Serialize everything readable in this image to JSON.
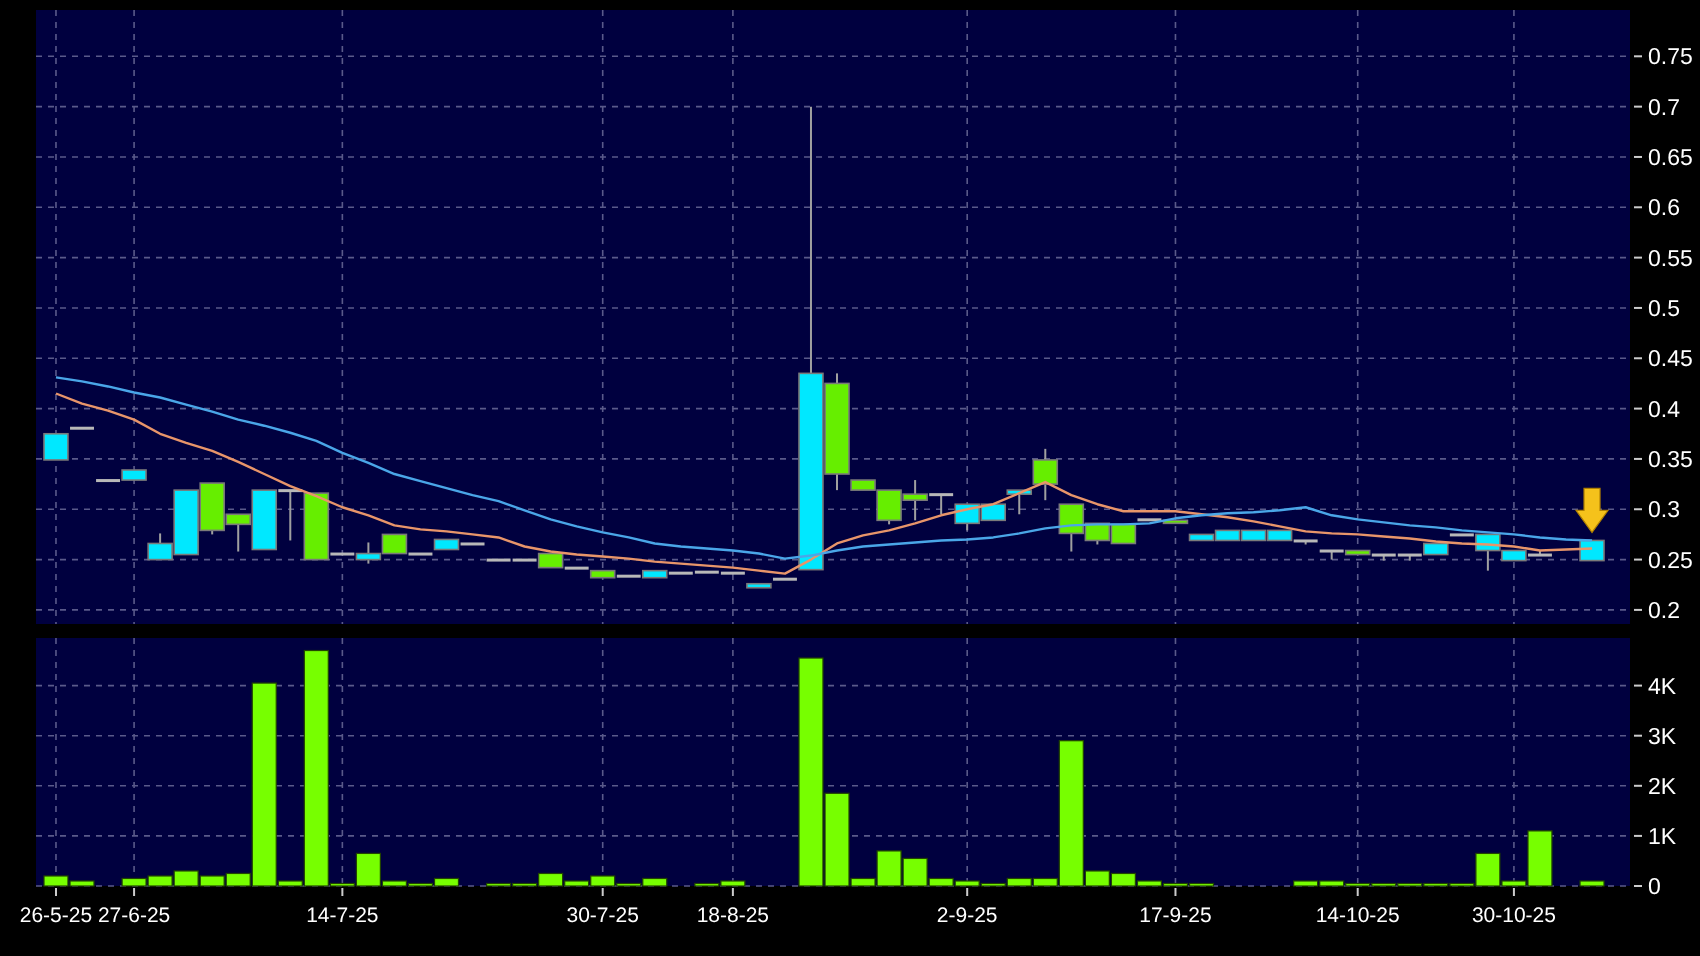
{
  "chart_data": [
    {
      "type": "candlestick",
      "categories": [
        null,
        null,
        null,
        null,
        null,
        null,
        null,
        null,
        null,
        null,
        null,
        null,
        null,
        null,
        null,
        null,
        null,
        null,
        null,
        null,
        null,
        null,
        null,
        null,
        null,
        null,
        null,
        null,
        null,
        null,
        null,
        null,
        null,
        null,
        null,
        null,
        null,
        null,
        null,
        null,
        null,
        null,
        null,
        null,
        null,
        null,
        null,
        null,
        null,
        null,
        null,
        null,
        null,
        null,
        null,
        null,
        null,
        null,
        null,
        null
      ],
      "ohlc": [
        [
          0.349,
          0.375,
          0.349,
          0.375
        ],
        [
          0.381,
          0.381,
          0.381,
          0.381
        ],
        [
          0.329,
          0.329,
          0.329,
          0.329
        ],
        [
          0.329,
          0.339,
          0.329,
          0.339
        ],
        [
          0.25,
          0.276,
          0.25,
          0.266
        ],
        [
          0.255,
          0.319,
          0.255,
          0.319
        ],
        [
          0.326,
          0.326,
          0.275,
          0.279
        ],
        [
          0.295,
          0.295,
          0.258,
          0.285
        ],
        [
          0.26,
          0.319,
          0.26,
          0.319
        ],
        [
          0.319,
          0.319,
          0.269,
          0.319
        ],
        [
          0.316,
          0.316,
          0.25,
          0.25
        ],
        [
          0.256,
          0.256,
          0.256,
          0.256
        ],
        [
          0.25,
          0.267,
          0.246,
          0.256
        ],
        [
          0.275,
          0.275,
          0.256,
          0.256
        ],
        [
          0.256,
          0.256,
          0.256,
          0.256
        ],
        [
          0.26,
          0.27,
          0.26,
          0.27
        ],
        [
          0.266,
          0.266,
          0.266,
          0.266
        ],
        [
          0.25,
          0.25,
          0.25,
          0.25
        ],
        [
          0.25,
          0.25,
          0.25,
          0.25
        ],
        [
          0.256,
          0.256,
          0.242,
          0.242
        ],
        [
          0.242,
          0.242,
          0.242,
          0.242
        ],
        [
          0.239,
          0.239,
          0.232,
          0.232
        ],
        [
          0.234,
          0.234,
          0.234,
          0.234
        ],
        [
          0.232,
          0.239,
          0.232,
          0.239
        ],
        [
          0.237,
          0.237,
          0.237,
          0.237
        ],
        [
          0.238,
          0.238,
          0.238,
          0.238
        ],
        [
          0.237,
          0.237,
          0.237,
          0.237
        ],
        [
          0.222,
          0.226,
          0.222,
          0.226
        ],
        [
          0.231,
          0.231,
          0.231,
          0.231
        ],
        [
          0.24,
          0.7,
          0.24,
          0.435
        ],
        [
          0.425,
          0.435,
          0.319,
          0.335
        ],
        [
          0.329,
          0.329,
          0.319,
          0.319
        ],
        [
          0.319,
          0.319,
          0.285,
          0.289
        ],
        [
          0.315,
          0.329,
          0.289,
          0.309
        ],
        [
          0.315,
          0.315,
          0.295,
          0.315
        ],
        [
          0.286,
          0.305,
          0.279,
          0.305
        ],
        [
          0.289,
          0.305,
          0.289,
          0.305
        ],
        [
          0.315,
          0.319,
          0.295,
          0.319
        ],
        [
          0.349,
          0.36,
          0.309,
          0.325
        ],
        [
          0.305,
          0.305,
          0.258,
          0.276
        ],
        [
          0.286,
          0.286,
          0.265,
          0.269
        ],
        [
          0.285,
          0.285,
          0.266,
          0.266
        ],
        [
          0.29,
          0.29,
          0.29,
          0.29
        ],
        [
          0.289,
          0.289,
          0.286,
          0.286
        ],
        [
          0.269,
          0.275,
          0.269,
          0.275
        ],
        [
          0.269,
          0.279,
          0.269,
          0.279
        ],
        [
          0.269,
          0.279,
          0.269,
          0.279
        ],
        [
          0.269,
          0.279,
          0.269,
          0.279
        ],
        [
          0.269,
          0.269,
          0.265,
          0.269
        ],
        [
          0.259,
          0.259,
          0.25,
          0.259
        ],
        [
          0.259,
          0.259,
          0.255,
          0.255
        ],
        [
          0.255,
          0.255,
          0.249,
          0.255
        ],
        [
          0.255,
          0.255,
          0.249,
          0.255
        ],
        [
          0.255,
          0.266,
          0.255,
          0.266
        ],
        [
          0.275,
          0.275,
          0.275,
          0.275
        ],
        [
          0.259,
          0.275,
          0.239,
          0.275
        ],
        [
          0.249,
          0.259,
          0.249,
          0.259
        ],
        [
          0.255,
          0.259,
          0.255,
          0.255
        ],
        null,
        [
          0.249,
          0.269,
          0.249,
          0.269
        ]
      ],
      "colors": [
        "#00e8ff",
        "#b8b8b8",
        "#b8b8b8",
        "#00e8ff",
        "#00e8ff",
        "#00e8ff",
        "#66ee00",
        "#66ee00",
        "#00e8ff",
        "#b8b8b8",
        "#66ee00",
        "#b8b8b8",
        "#00e8ff",
        "#66ee00",
        "#b8b8b8",
        "#00e8ff",
        "#b8b8b8",
        "#b8b8b8",
        "#b8b8b8",
        "#66ee00",
        "#b8b8b8",
        "#66ee00",
        "#b8b8b8",
        "#00e8ff",
        "#b8b8b8",
        "#b8b8b8",
        "#b8b8b8",
        "#00e8ff",
        "#b8b8b8",
        "#00e8ff",
        "#66ee00",
        "#66ee00",
        "#66ee00",
        "#66ee00",
        "#b8b8b8",
        "#00e8ff",
        "#00e8ff",
        "#00e8ff",
        "#66ee00",
        "#66ee00",
        "#66ee00",
        "#66ee00",
        "#b8b8b8",
        "#66ee00",
        "#00e8ff",
        "#00e8ff",
        "#00e8ff",
        "#00e8ff",
        "#b8b8b8",
        "#b8b8b8",
        "#66ee00",
        "#b8b8b8",
        "#b8b8b8",
        "#00e8ff",
        "#b8b8b8",
        "#00e8ff",
        "#00e8ff",
        "#b8b8b8",
        null,
        "#00e8ff"
      ],
      "series": [
        {
          "type": "line",
          "color": "#e8956a",
          "values": [
            0.415,
            0.405,
            0.398,
            0.389,
            0.375,
            0.366,
            0.358,
            0.347,
            0.335,
            0.323,
            0.313,
            0.302,
            0.294,
            0.284,
            0.28,
            0.278,
            0.275,
            0.272,
            0.263,
            0.258,
            0.255,
            0.253,
            0.251,
            0.248,
            0.246,
            0.244,
            0.242,
            0.239,
            0.236,
            0.25,
            0.266,
            0.274,
            0.279,
            0.286,
            0.294,
            0.3,
            0.305,
            0.316,
            0.327,
            0.314,
            0.305,
            0.298,
            0.298,
            0.298,
            0.295,
            0.292,
            0.288,
            0.283,
            0.278,
            0.276,
            0.275,
            0.273,
            0.271,
            0.268,
            0.266,
            0.265,
            0.263,
            0.259,
            0.26,
            0.261
          ]
        },
        {
          "type": "line",
          "color": "#4aa6e8",
          "values": [
            0.431,
            0.427,
            0.422,
            0.416,
            0.411,
            0.404,
            0.397,
            0.389,
            0.383,
            0.376,
            0.368,
            0.356,
            0.346,
            0.335,
            0.328,
            0.321,
            0.314,
            0.308,
            0.299,
            0.29,
            0.283,
            0.277,
            0.272,
            0.266,
            0.263,
            0.261,
            0.259,
            0.256,
            0.251,
            0.254,
            0.259,
            0.263,
            0.265,
            0.267,
            0.269,
            0.27,
            0.272,
            0.276,
            0.281,
            0.284,
            0.285,
            0.285,
            0.286,
            0.291,
            0.294,
            0.296,
            0.297,
            0.299,
            0.302,
            0.294,
            0.29,
            0.287,
            0.284,
            0.282,
            0.279,
            0.277,
            0.275,
            0.272,
            0.27,
            0.269
          ]
        }
      ],
      "ylim": [
        0.186,
        0.796
      ],
      "yticks": [
        0.2,
        0.25,
        0.3,
        0.35,
        0.4,
        0.45,
        0.5,
        0.55,
        0.6,
        0.65,
        0.7,
        0.75
      ],
      "grid": true,
      "tick_labels": "y"
    },
    {
      "type": "bar",
      "categories": [
        "26-5-25",
        null,
        null,
        "27-6-25",
        null,
        null,
        null,
        null,
        null,
        null,
        null,
        "14-7-25",
        null,
        null,
        null,
        null,
        null,
        null,
        null,
        null,
        null,
        "30-7-25",
        null,
        null,
        null,
        null,
        "18-8-25",
        null,
        null,
        null,
        null,
        null,
        null,
        null,
        null,
        "2-9-25",
        null,
        null,
        null,
        null,
        null,
        null,
        null,
        "17-9-25",
        null,
        null,
        null,
        null,
        null,
        null,
        "14-10-25",
        null,
        null,
        null,
        null,
        null,
        "30-10-25",
        null,
        null,
        null
      ],
      "values": [
        200,
        100,
        0,
        150,
        200,
        300,
        200,
        250,
        4050,
        100,
        4700,
        50,
        650,
        100,
        50,
        150,
        0,
        50,
        50,
        250,
        100,
        200,
        50,
        150,
        0,
        50,
        100,
        0,
        0,
        4550,
        1850,
        150,
        700,
        550,
        150,
        100,
        50,
        150,
        150,
        2900,
        300,
        250,
        100,
        50,
        50,
        0,
        0,
        0,
        100,
        100,
        50,
        50,
        50,
        50,
        50,
        650,
        100,
        1100,
        0,
        100
      ],
      "color": "#77ff00",
      "ylim": [
        0,
        4950
      ],
      "yticks": [
        {
          "value": 0,
          "label": "0"
        },
        {
          "value": 1000,
          "label": "1K"
        },
        {
          "value": 2000,
          "label": "2K"
        },
        {
          "value": 3000,
          "label": "3K"
        },
        {
          "value": 4000,
          "label": "4K"
        }
      ],
      "grid": true
    }
  ]
}
